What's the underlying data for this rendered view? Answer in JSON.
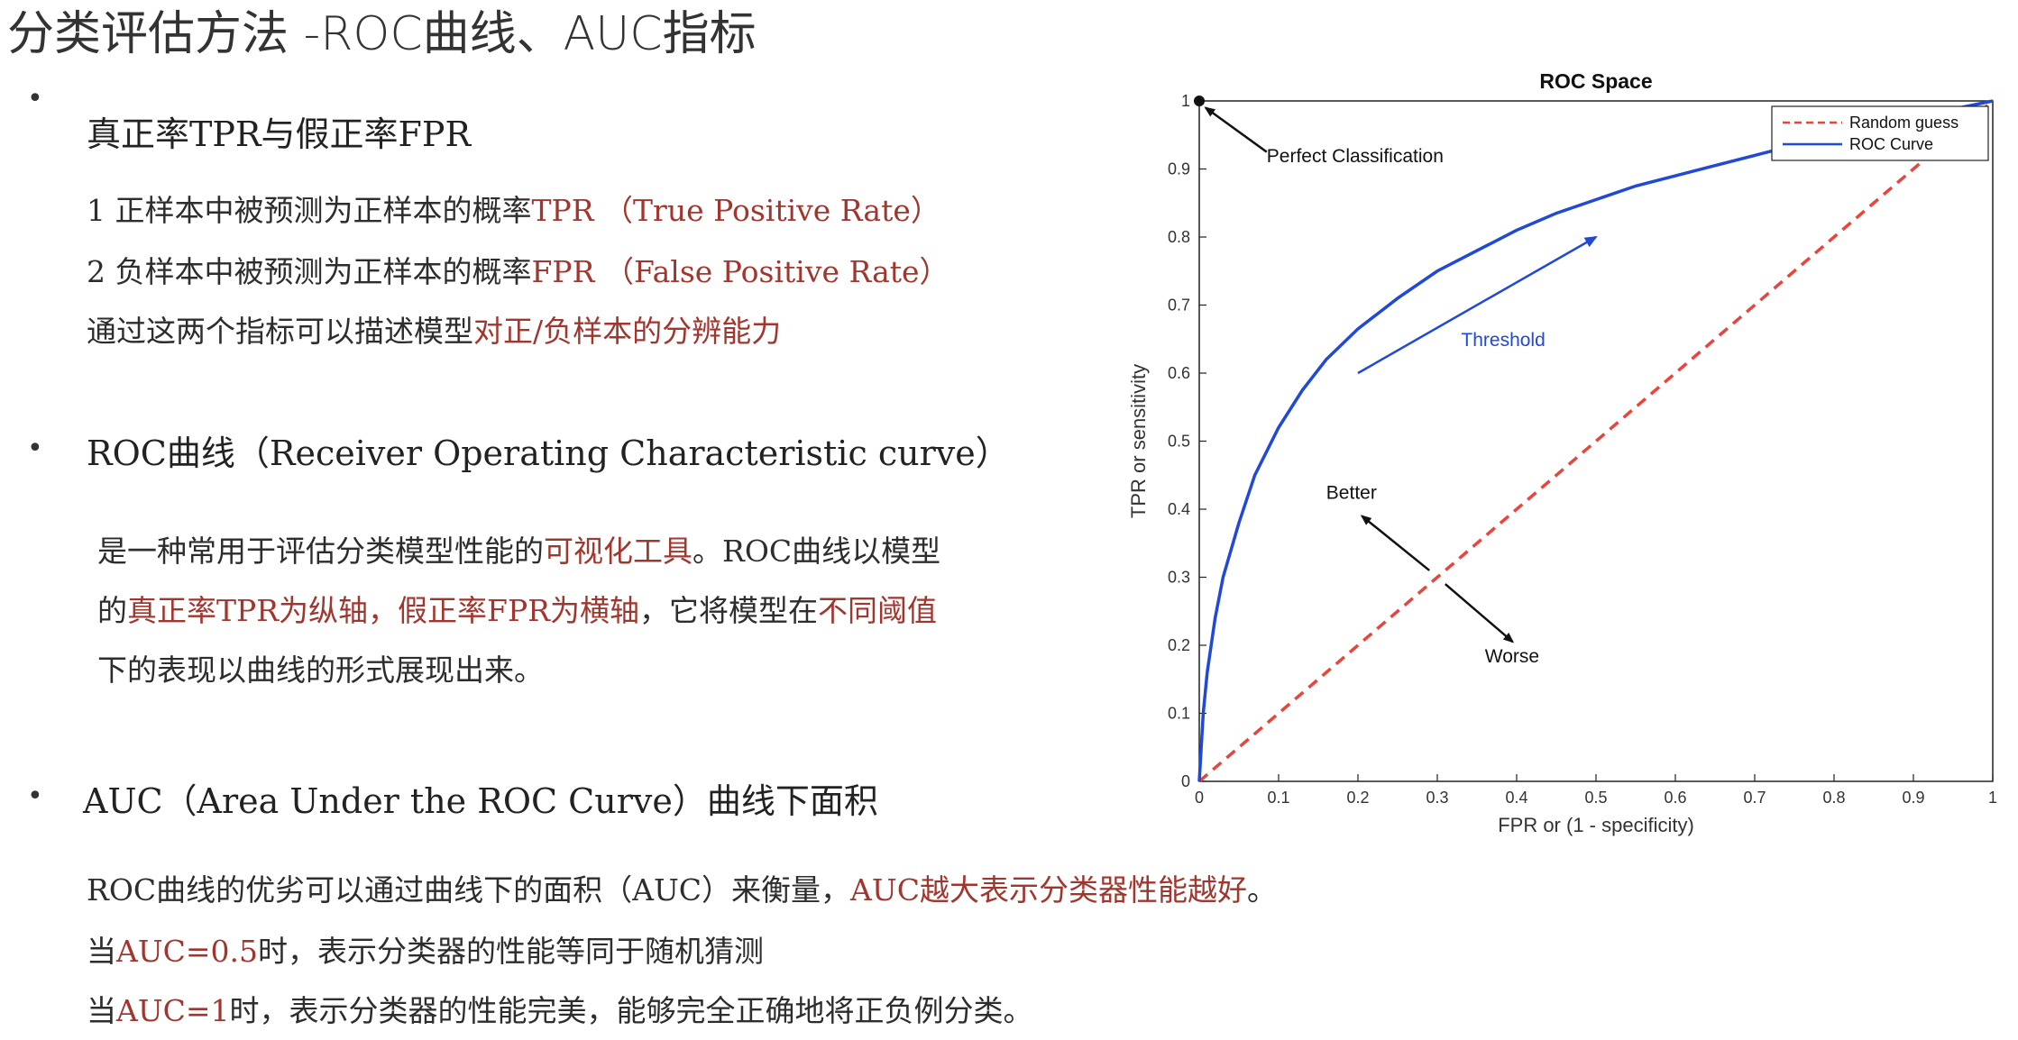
{
  "title": "分类评估方法 -ROC曲线、AUC指标",
  "section1": {
    "heading": "真正率TPR与假正率FPR",
    "line1_a": "1 正样本中被预测为正样本的概率",
    "line1_b": "TPR （True Positive Rate）",
    "line2_a": "2 负样本中被预测为正样本的概率",
    "line2_b": "FPR （False Positive Rate）",
    "line3_a": "通过这两个指标可以描述模型",
    "line3_b": "对正/负样本的分辨能力"
  },
  "section2": {
    "heading": "ROC曲线（Receiver Operating Characteristic curve）",
    "p1_a": "是一种常用于评估分类模型性能的",
    "p1_b": "可视化工具",
    "p1_c": "。ROC曲线以模型",
    "p2_a": "的",
    "p2_b": "真正率TPR为纵轴，假正率FPR为横轴",
    "p2_c": "，它将模型在",
    "p2_d": "不同阈值",
    "p3": "下的表现以曲线的形式展现出来。"
  },
  "section3": {
    "heading": "AUC（Area Under the ROC Curve）曲线下面积",
    "l1_a": "ROC曲线的优劣可以通过曲线下的面积（AUC）来衡量，",
    "l1_b": "AUC越大表示分类器性能越好",
    "l1_c": "。",
    "l2_a": "当",
    "l2_b": "AUC=0.5",
    "l2_c": "时，表示分类器的性能等同于随机猜测",
    "l3_a": "当",
    "l3_b": "AUC=1",
    "l3_c": "时，表示分类器的性能完美，能够完全正确地将正负例分类。"
  },
  "chart_data": {
    "type": "line",
    "title": "ROC Space",
    "xlabel": "FPR or (1 - specificity)",
    "ylabel": "TPR or sensitivity",
    "xlim": [
      0,
      1
    ],
    "ylim": [
      0,
      1
    ],
    "xticks": [
      "0",
      "0.1",
      "0.2",
      "0.3",
      "0.4",
      "0.5",
      "0.6",
      "0.7",
      "0.8",
      "0.9",
      "1"
    ],
    "yticks": [
      "0",
      "0.1",
      "0.2",
      "0.3",
      "0.4",
      "0.5",
      "0.6",
      "0.7",
      "0.8",
      "0.9",
      "1"
    ],
    "legend_position": "top-right",
    "series": [
      {
        "name": "Random guess",
        "style": "dashed",
        "color": "#e8453c",
        "x": [
          0,
          1
        ],
        "y": [
          0,
          1
        ]
      },
      {
        "name": "ROC Curve",
        "style": "solid",
        "color": "#1f49d6",
        "x": [
          0,
          0.005,
          0.01,
          0.02,
          0.03,
          0.05,
          0.07,
          0.1,
          0.13,
          0.16,
          0.2,
          0.25,
          0.3,
          0.35,
          0.4,
          0.45,
          0.5,
          0.55,
          0.6,
          0.65,
          0.7,
          0.75,
          0.8,
          0.85,
          0.9,
          0.95,
          1.0
        ],
        "y": [
          0,
          0.1,
          0.16,
          0.24,
          0.3,
          0.38,
          0.45,
          0.52,
          0.575,
          0.62,
          0.665,
          0.71,
          0.75,
          0.78,
          0.81,
          0.835,
          0.855,
          0.875,
          0.89,
          0.905,
          0.92,
          0.935,
          0.95,
          0.963,
          0.975,
          0.988,
          1.0
        ]
      }
    ],
    "annotations": {
      "perfect": "Perfect Classification",
      "threshold": "Threshold",
      "better": "Better",
      "worse": "Worse"
    }
  }
}
